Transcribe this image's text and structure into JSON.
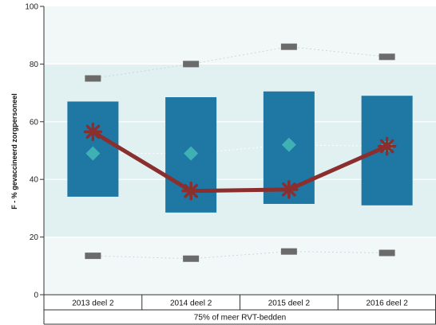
{
  "chart_data": {
    "type": "box",
    "ylabel": "F - % gevaccineerd zorgpersoneel",
    "xlabel": "75% of meer RVT-bedden",
    "ylim": [
      0,
      100
    ],
    "yticks": [
      0,
      20,
      40,
      60,
      80,
      100
    ],
    "grid": "bands",
    "categories": [
      "2013 deel 2",
      "2014 deel 2",
      "2015 deel 2",
      "2016 deel 2"
    ],
    "series": [
      {
        "role": "box-q1",
        "values": [
          34,
          28.5,
          31.5,
          31
        ]
      },
      {
        "role": "box-q3",
        "values": [
          67,
          68.5,
          70.5,
          69
        ]
      },
      {
        "role": "mean",
        "values": [
          49,
          49,
          52,
          51.5
        ]
      },
      {
        "role": "median",
        "values": [
          56.5,
          36,
          36.5,
          51.5
        ]
      },
      {
        "role": "p90",
        "values": [
          75,
          80,
          86,
          82.5
        ]
      },
      {
        "role": "p10",
        "values": [
          13.5,
          12.5,
          15,
          14.5
        ]
      }
    ],
    "colors": {
      "band_outer": "#f2f8f8",
      "band_inner": "#e1f0f1",
      "box": "#1f77a4",
      "mean": "#3fb0b4",
      "median": "#8b2e2e",
      "whisker": "#6b6b6b",
      "dotted": "#c8d8dc"
    }
  }
}
